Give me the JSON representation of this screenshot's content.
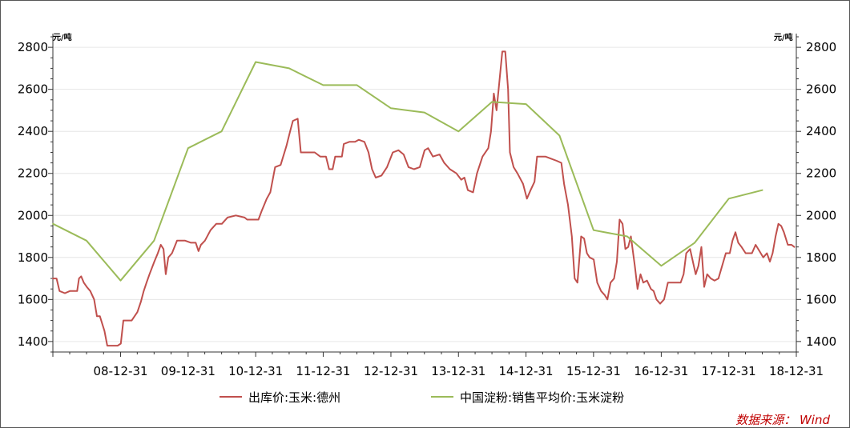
{
  "chart_data": {
    "type": "line",
    "left_unit": "元/吨",
    "right_unit": "元/吨",
    "source": "数据来源： Wind",
    "ylim": [
      1350,
      2850
    ],
    "y_ticks": [
      "1400",
      "1600",
      "1800",
      "2000",
      "2200",
      "2400",
      "2600",
      "2800"
    ],
    "x_ticks": [
      "08-12-31",
      "09-12-31",
      "10-12-31",
      "11-12-31",
      "12-12-31",
      "13-12-31",
      "14-12-31",
      "15-12-31",
      "16-12-31",
      "17-12-31",
      "18-12-31"
    ],
    "x_range": [
      "2007-12-31",
      "2018-12-31"
    ],
    "grid": "horizontal",
    "legend_position": "bottom",
    "series": [
      {
        "name": "出库价:玉米:德州",
        "color": "#c0504d",
        "points": [
          [
            "2007-12-31",
            1700
          ],
          [
            "2008-01-20",
            1700
          ],
          [
            "2008-02-05",
            1640
          ],
          [
            "2008-03-05",
            1630
          ],
          [
            "2008-04-01",
            1640
          ],
          [
            "2008-05-10",
            1640
          ],
          [
            "2008-05-20",
            1700
          ],
          [
            "2008-06-01",
            1710
          ],
          [
            "2008-06-15",
            1680
          ],
          [
            "2008-07-01",
            1660
          ],
          [
            "2008-07-20",
            1640
          ],
          [
            "2008-08-10",
            1600
          ],
          [
            "2008-08-25",
            1520
          ],
          [
            "2008-09-10",
            1520
          ],
          [
            "2008-10-05",
            1450
          ],
          [
            "2008-10-20",
            1380
          ],
          [
            "2008-11-15",
            1380
          ],
          [
            "2008-12-15",
            1380
          ],
          [
            "2009-01-01",
            1390
          ],
          [
            "2009-01-15",
            1500
          ],
          [
            "2009-03-01",
            1500
          ],
          [
            "2009-04-01",
            1540
          ],
          [
            "2009-04-20",
            1590
          ],
          [
            "2009-05-05",
            1640
          ],
          [
            "2009-05-20",
            1680
          ],
          [
            "2009-06-05",
            1720
          ],
          [
            "2009-07-01",
            1780
          ],
          [
            "2009-07-20",
            1820
          ],
          [
            "2009-08-05",
            1860
          ],
          [
            "2009-08-20",
            1840
          ],
          [
            "2009-09-01",
            1720
          ],
          [
            "2009-09-15",
            1800
          ],
          [
            "2009-10-05",
            1820
          ],
          [
            "2009-11-01",
            1880
          ],
          [
            "2009-12-15",
            1880
          ],
          [
            "2010-01-15",
            1870
          ],
          [
            "2010-02-10",
            1870
          ],
          [
            "2010-02-25",
            1830
          ],
          [
            "2010-03-10",
            1860
          ],
          [
            "2010-04-01",
            1880
          ],
          [
            "2010-05-01",
            1930
          ],
          [
            "2010-06-01",
            1960
          ],
          [
            "2010-07-01",
            1960
          ],
          [
            "2010-08-01",
            1990
          ],
          [
            "2010-09-15",
            2000
          ],
          [
            "2010-11-01",
            1990
          ],
          [
            "2010-11-15",
            1980
          ],
          [
            "2011-01-15",
            1980
          ],
          [
            "2011-02-01",
            2020
          ],
          [
            "2011-03-01",
            2080
          ],
          [
            "2011-03-20",
            2110
          ],
          [
            "2011-04-15",
            2230
          ],
          [
            "2011-05-15",
            2240
          ],
          [
            "2011-06-15",
            2330
          ],
          [
            "2011-07-05",
            2400
          ],
          [
            "2011-07-20",
            2450
          ],
          [
            "2011-08-15",
            2460
          ],
          [
            "2011-09-01",
            2300
          ],
          [
            "2011-09-20",
            2300
          ],
          [
            "2011-11-15",
            2300
          ],
          [
            "2011-12-15",
            2280
          ],
          [
            "2012-01-15",
            2280
          ],
          [
            "2012-02-01",
            2220
          ],
          [
            "2012-02-20",
            2220
          ],
          [
            "2012-03-05",
            2280
          ],
          [
            "2012-04-10",
            2280
          ],
          [
            "2012-04-20",
            2340
          ],
          [
            "2012-05-20",
            2350
          ],
          [
            "2012-06-20",
            2350
          ],
          [
            "2012-07-10",
            2360
          ],
          [
            "2012-08-10",
            2350
          ],
          [
            "2012-09-01",
            2300
          ],
          [
            "2012-09-20",
            2220
          ],
          [
            "2012-10-10",
            2180
          ],
          [
            "2012-11-10",
            2190
          ],
          [
            "2012-12-10",
            2230
          ],
          [
            "2013-01-10",
            2300
          ],
          [
            "2013-02-10",
            2310
          ],
          [
            "2013-03-10",
            2290
          ],
          [
            "2013-04-05",
            2230
          ],
          [
            "2013-05-05",
            2220
          ],
          [
            "2013-06-05",
            2230
          ],
          [
            "2013-07-01",
            2310
          ],
          [
            "2013-07-20",
            2320
          ],
          [
            "2013-08-15",
            2280
          ],
          [
            "2013-09-20",
            2290
          ],
          [
            "2013-10-15",
            2250
          ],
          [
            "2013-11-15",
            2220
          ],
          [
            "2013-12-20",
            2200
          ],
          [
            "2014-01-15",
            2170
          ],
          [
            "2014-02-01",
            2180
          ],
          [
            "2014-02-20",
            2120
          ],
          [
            "2014-03-20",
            2110
          ],
          [
            "2014-04-10",
            2200
          ],
          [
            "2014-05-10",
            2280
          ],
          [
            "2014-06-10",
            2320
          ],
          [
            "2014-06-25",
            2400
          ],
          [
            "2014-07-10",
            2580
          ],
          [
            "2014-07-25",
            2500
          ],
          [
            "2014-08-05",
            2600
          ],
          [
            "2014-08-25",
            2780
          ],
          [
            "2014-09-10",
            2780
          ],
          [
            "2014-09-25",
            2600
          ],
          [
            "2014-10-05",
            2300
          ],
          [
            "2014-10-25",
            2230
          ],
          [
            "2014-11-15",
            2200
          ],
          [
            "2014-12-15",
            2150
          ],
          [
            "2015-01-05",
            2080
          ],
          [
            "2015-01-25",
            2120
          ],
          [
            "2015-02-15",
            2160
          ],
          [
            "2015-03-01",
            2280
          ],
          [
            "2015-04-15",
            2280
          ],
          [
            "2015-05-15",
            2270
          ],
          [
            "2015-06-15",
            2260
          ],
          [
            "2015-07-10",
            2250
          ],
          [
            "2015-07-25",
            2150
          ],
          [
            "2015-08-15",
            2050
          ],
          [
            "2015-09-05",
            1900
          ],
          [
            "2015-09-20",
            1700
          ],
          [
            "2015-10-05",
            1680
          ],
          [
            "2015-10-25",
            1900
          ],
          [
            "2015-11-10",
            1890
          ],
          [
            "2015-11-25",
            1820
          ],
          [
            "2015-12-10",
            1800
          ],
          [
            "2016-01-01",
            1790
          ],
          [
            "2016-01-20",
            1680
          ],
          [
            "2016-02-10",
            1640
          ],
          [
            "2016-03-01",
            1620
          ],
          [
            "2016-03-15",
            1600
          ],
          [
            "2016-04-01",
            1680
          ],
          [
            "2016-04-20",
            1700
          ],
          [
            "2016-05-05",
            1780
          ],
          [
            "2016-05-20",
            1980
          ],
          [
            "2016-06-05",
            1960
          ],
          [
            "2016-06-20",
            1840
          ],
          [
            "2016-07-05",
            1850
          ],
          [
            "2016-07-20",
            1900
          ],
          [
            "2016-08-10",
            1760
          ],
          [
            "2016-08-25",
            1650
          ],
          [
            "2016-09-10",
            1720
          ],
          [
            "2016-09-25",
            1680
          ],
          [
            "2016-10-15",
            1690
          ],
          [
            "2016-11-05",
            1650
          ],
          [
            "2016-11-20",
            1640
          ],
          [
            "2016-12-05",
            1600
          ],
          [
            "2016-12-25",
            1580
          ],
          [
            "2017-01-15",
            1600
          ],
          [
            "2017-02-05",
            1680
          ],
          [
            "2017-03-01",
            1680
          ],
          [
            "2017-04-15",
            1680
          ],
          [
            "2017-05-01",
            1720
          ],
          [
            "2017-05-15",
            1820
          ],
          [
            "2017-06-05",
            1840
          ],
          [
            "2017-06-20",
            1780
          ],
          [
            "2017-07-05",
            1720
          ],
          [
            "2017-07-20",
            1760
          ],
          [
            "2017-08-05",
            1850
          ],
          [
            "2017-08-20",
            1660
          ],
          [
            "2017-09-05",
            1720
          ],
          [
            "2017-09-25",
            1700
          ],
          [
            "2017-10-15",
            1690
          ],
          [
            "2017-11-05",
            1700
          ],
          [
            "2017-11-25",
            1760
          ],
          [
            "2017-12-15",
            1820
          ],
          [
            "2018-01-05",
            1820
          ],
          [
            "2018-01-20",
            1880
          ],
          [
            "2018-02-05",
            1920
          ],
          [
            "2018-02-20",
            1870
          ],
          [
            "2018-03-10",
            1850
          ],
          [
            "2018-04-01",
            1820
          ],
          [
            "2018-05-05",
            1820
          ],
          [
            "2018-05-25",
            1860
          ],
          [
            "2018-06-15",
            1830
          ],
          [
            "2018-07-05",
            1800
          ],
          [
            "2018-07-25",
            1820
          ],
          [
            "2018-08-10",
            1780
          ],
          [
            "2018-08-25",
            1820
          ],
          [
            "2018-09-10",
            1900
          ],
          [
            "2018-09-25",
            1960
          ],
          [
            "2018-10-10",
            1950
          ],
          [
            "2018-10-25",
            1920
          ],
          [
            "2018-11-15",
            1860
          ],
          [
            "2018-12-05",
            1860
          ],
          [
            "2018-12-20",
            1850
          ]
        ]
      },
      {
        "name": "中国淀粉:销售平均价:玉米淀粉",
        "color": "#9bbb59",
        "points": [
          [
            "2008-01-01",
            1960
          ],
          [
            "2008-06-30",
            1880
          ],
          [
            "2008-12-31",
            1690
          ],
          [
            "2009-06-30",
            1880
          ],
          [
            "2009-12-31",
            2320
          ],
          [
            "2010-06-30",
            2400
          ],
          [
            "2010-12-31",
            2730
          ],
          [
            "2011-06-30",
            2700
          ],
          [
            "2011-12-31",
            2620
          ],
          [
            "2012-06-30",
            2620
          ],
          [
            "2012-12-31",
            2510
          ],
          [
            "2013-06-30",
            2490
          ],
          [
            "2013-12-31",
            2400
          ],
          [
            "2014-06-30",
            2540
          ],
          [
            "2014-12-31",
            2530
          ],
          [
            "2015-06-30",
            2380
          ],
          [
            "2015-12-31",
            1930
          ],
          [
            "2016-06-30",
            1900
          ],
          [
            "2016-12-31",
            1760
          ],
          [
            "2017-06-30",
            1870
          ],
          [
            "2017-12-31",
            2080
          ],
          [
            "2018-06-30",
            2120
          ]
        ]
      }
    ]
  }
}
